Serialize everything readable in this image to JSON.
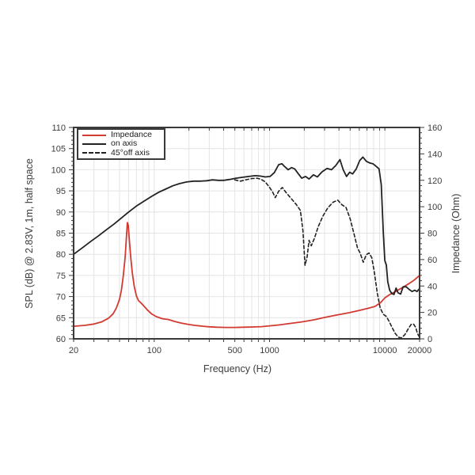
{
  "chart_data": {
    "type": "line",
    "title": "",
    "xlabel": "Frequency (Hz)",
    "ylabel_left": "SPL (dB) @ 2.83V, 1m, half space",
    "ylabel_right": "Impedance (Ohm)",
    "x_scale": "log",
    "x_range": [
      20,
      20000
    ],
    "y_left_range": [
      60,
      110
    ],
    "y_right_range": [
      0,
      160
    ],
    "grid": true,
    "colors": {
      "impedance": "#d23a32",
      "spl": "#222222",
      "grid": "#e4e4e4",
      "frame": "#3a3a3a",
      "tick_text": "#3c3c3c"
    },
    "x_tick_labels": [
      {
        "value": 20,
        "label": "20"
      },
      {
        "value": 100,
        "label": "100"
      },
      {
        "value": 500,
        "label": "500"
      },
      {
        "value": 1000,
        "label": "1000"
      },
      {
        "value": 10000,
        "label": "10000"
      },
      {
        "value": 20000,
        "label": "20000"
      }
    ],
    "y_left_ticks": [
      60,
      65,
      70,
      75,
      80,
      85,
      90,
      95,
      100,
      105,
      110
    ],
    "y_right_ticks": [
      0,
      20,
      40,
      60,
      80,
      100,
      120,
      140,
      160
    ],
    "legend": {
      "position": "top-left",
      "entries": [
        {
          "label": "Impedance",
          "color": "#d23a32",
          "style": "solid",
          "axis": "right"
        },
        {
          "label": "on axis",
          "color": "#222222",
          "style": "solid",
          "axis": "left"
        },
        {
          "label": "45°off axis",
          "color": "#222222",
          "style": "dashed",
          "axis": "left"
        }
      ]
    },
    "series": [
      {
        "name": "Impedance",
        "axis": "right",
        "color": "#d23a32",
        "style": "solid",
        "width": 1.8,
        "points": [
          [
            20,
            9.5
          ],
          [
            25,
            10.2
          ],
          [
            30,
            11.2
          ],
          [
            35,
            12.8
          ],
          [
            40,
            15.5
          ],
          [
            44,
            19
          ],
          [
            47,
            23.5
          ],
          [
            50,
            30
          ],
          [
            52,
            37
          ],
          [
            54,
            48
          ],
          [
            56,
            62
          ],
          [
            57.5,
            78
          ],
          [
            58.5,
            88
          ],
          [
            59.5,
            86
          ],
          [
            61,
            74
          ],
          [
            62.5,
            62
          ],
          [
            64.5,
            50
          ],
          [
            67,
            40
          ],
          [
            70,
            32.5
          ],
          [
            73,
            29
          ],
          [
            77,
            27
          ],
          [
            82,
            24.5
          ],
          [
            88,
            21.5
          ],
          [
            95,
            18.8
          ],
          [
            105,
            16.7
          ],
          [
            118,
            15.2
          ],
          [
            133,
            14.6
          ],
          [
            150,
            13.2
          ],
          [
            170,
            12.0
          ],
          [
            195,
            11.0
          ],
          [
            225,
            10.2
          ],
          [
            260,
            9.6
          ],
          [
            300,
            9.1
          ],
          [
            350,
            8.8
          ],
          [
            420,
            8.6
          ],
          [
            500,
            8.6
          ],
          [
            600,
            8.8
          ],
          [
            720,
            9.0
          ],
          [
            850,
            9.2
          ],
          [
            1000,
            9.8
          ],
          [
            1200,
            10.5
          ],
          [
            1500,
            11.6
          ],
          [
            1900,
            12.8
          ],
          [
            2400,
            14.3
          ],
          [
            3000,
            16.2
          ],
          [
            3800,
            18.0
          ],
          [
            4900,
            19.8
          ],
          [
            6000,
            21.5
          ],
          [
            7000,
            22.9
          ],
          [
            8200,
            24.5
          ],
          [
            9200,
            27.5
          ],
          [
            10000,
            31
          ],
          [
            11000,
            33.5
          ],
          [
            12500,
            36
          ],
          [
            14000,
            38.5
          ],
          [
            16000,
            41.5
          ],
          [
            18000,
            44.5
          ],
          [
            20000,
            48
          ]
        ]
      },
      {
        "name": "on axis",
        "axis": "left",
        "color": "#222222",
        "style": "solid",
        "width": 1.8,
        "points": [
          [
            20,
            80
          ],
          [
            24,
            81.6
          ],
          [
            28,
            83
          ],
          [
            33,
            84.4
          ],
          [
            38,
            85.7
          ],
          [
            45,
            87.2
          ],
          [
            52,
            88.6
          ],
          [
            60,
            90
          ],
          [
            70,
            91.4
          ],
          [
            82,
            92.6
          ],
          [
            95,
            93.7
          ],
          [
            110,
            94.7
          ],
          [
            125,
            95.4
          ],
          [
            145,
            96.2
          ],
          [
            165,
            96.7
          ],
          [
            190,
            97.1
          ],
          [
            220,
            97.3
          ],
          [
            250,
            97.3
          ],
          [
            285,
            97.4
          ],
          [
            320,
            97.6
          ],
          [
            360,
            97.5
          ],
          [
            400,
            97.5
          ],
          [
            450,
            97.7
          ],
          [
            510,
            98
          ],
          [
            580,
            98.2
          ],
          [
            660,
            98.4
          ],
          [
            750,
            98.6
          ],
          [
            830,
            98.5
          ],
          [
            920,
            98.3
          ],
          [
            1010,
            98.4
          ],
          [
            1100,
            99.3
          ],
          [
            1200,
            101.2
          ],
          [
            1280,
            101.4
          ],
          [
            1360,
            100.7
          ],
          [
            1450,
            100
          ],
          [
            1550,
            100.5
          ],
          [
            1650,
            100.2
          ],
          [
            1780,
            99
          ],
          [
            1900,
            98
          ],
          [
            2050,
            98.4
          ],
          [
            2200,
            97.8
          ],
          [
            2400,
            98.8
          ],
          [
            2600,
            98.3
          ],
          [
            2850,
            99.5
          ],
          [
            3150,
            100.3
          ],
          [
            3450,
            100
          ],
          [
            3750,
            101
          ],
          [
            4080,
            102.4
          ],
          [
            4350,
            100
          ],
          [
            4650,
            98.4
          ],
          [
            4950,
            99.4
          ],
          [
            5250,
            99
          ],
          [
            5650,
            100.2
          ],
          [
            6050,
            102.2
          ],
          [
            6450,
            103
          ],
          [
            6900,
            102
          ],
          [
            7400,
            101.6
          ],
          [
            7900,
            101.4
          ],
          [
            8400,
            100.8
          ],
          [
            8900,
            100.2
          ],
          [
            9300,
            96.5
          ],
          [
            9700,
            85
          ],
          [
            10000,
            78.5
          ],
          [
            10300,
            77.5
          ],
          [
            10600,
            73.5
          ],
          [
            11000,
            71.5
          ],
          [
            11500,
            70.7
          ],
          [
            12000,
            70.5
          ],
          [
            12500,
            72
          ],
          [
            13000,
            70.9
          ],
          [
            13700,
            70.6
          ],
          [
            14400,
            72.3
          ],
          [
            15300,
            72.3
          ],
          [
            16200,
            71.7
          ],
          [
            17200,
            71.2
          ],
          [
            18200,
            71.5
          ],
          [
            19000,
            71.2
          ],
          [
            20000,
            71.9
          ]
        ]
      },
      {
        "name": "45°off axis",
        "axis": "left",
        "color": "#222222",
        "style": "dashed",
        "width": 1.6,
        "points": [
          [
            500,
            97.6
          ],
          [
            560,
            97.3
          ],
          [
            620,
            97.6
          ],
          [
            700,
            97.9
          ],
          [
            780,
            98
          ],
          [
            850,
            97.7
          ],
          [
            920,
            97.1
          ],
          [
            1000,
            95.8
          ],
          [
            1060,
            94.8
          ],
          [
            1120,
            93.4
          ],
          [
            1200,
            94.9
          ],
          [
            1290,
            95.8
          ],
          [
            1400,
            94.5
          ],
          [
            1550,
            93.1
          ],
          [
            1700,
            91.8
          ],
          [
            1850,
            90.4
          ],
          [
            1950,
            85.5
          ],
          [
            2030,
            77.4
          ],
          [
            2120,
            79.5
          ],
          [
            2200,
            83.3
          ],
          [
            2300,
            82
          ],
          [
            2450,
            83.8
          ],
          [
            2650,
            86.6
          ],
          [
            2900,
            89
          ],
          [
            3200,
            91
          ],
          [
            3550,
            92.3
          ],
          [
            3900,
            92.8
          ],
          [
            4250,
            91.7
          ],
          [
            4600,
            91.1
          ],
          [
            5000,
            88.4
          ],
          [
            5400,
            84.8
          ],
          [
            5800,
            81.4
          ],
          [
            6100,
            80.3
          ],
          [
            6500,
            78.1
          ],
          [
            6900,
            79.9
          ],
          [
            7300,
            80.3
          ],
          [
            7700,
            79.2
          ],
          [
            8100,
            75.8
          ],
          [
            8600,
            70.8
          ],
          [
            9100,
            67.3
          ],
          [
            9700,
            65.8
          ],
          [
            10300,
            65.3
          ],
          [
            10900,
            64.1
          ],
          [
            11600,
            62.6
          ],
          [
            12300,
            61.3
          ],
          [
            13100,
            60.4
          ],
          [
            13900,
            60.2
          ],
          [
            14900,
            61
          ],
          [
            15900,
            62.3
          ],
          [
            16900,
            63.4
          ],
          [
            17700,
            63.5
          ],
          [
            18500,
            62.7
          ],
          [
            19200,
            61.2
          ],
          [
            20000,
            60.4
          ]
        ]
      }
    ]
  }
}
